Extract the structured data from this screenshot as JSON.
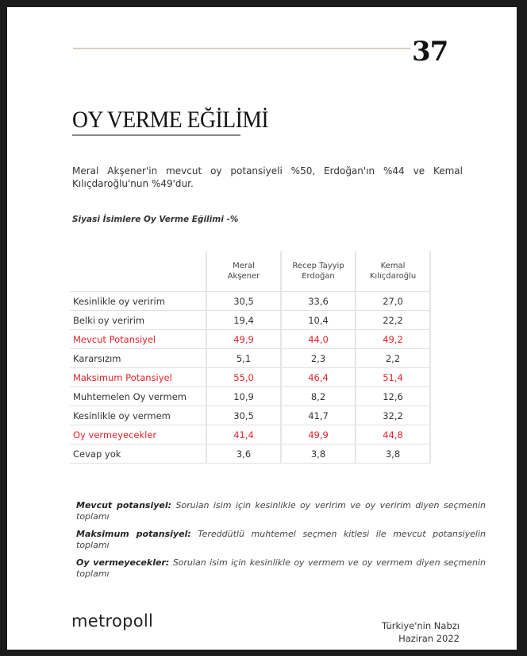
{
  "header": {
    "page_number": "37"
  },
  "title": "OY VERME EĞİLİMİ",
  "intro": "Meral Akşener'in mevcut oy potansiyeli %50, Erdoğan'ın %44 ve Kemal Kılıçdaroğlu'nun %49'dur.",
  "table_caption": "Siyasi İsimlere Oy Verme Eğilimi -%",
  "table": {
    "columns": [
      {
        "line1": "Meral",
        "line2": "Akşener"
      },
      {
        "line1": "Recep Tayyip",
        "line2": "Erdoğan"
      },
      {
        "line1": "Kemal",
        "line2": "Kılıçdaroğlu"
      }
    ],
    "rows": [
      {
        "label": "Kesinlikle oy veririm",
        "values": [
          "30,5",
          "33,6",
          "27,0"
        ],
        "highlight": false
      },
      {
        "label": "Belki oy veririm",
        "values": [
          "19,4",
          "10,4",
          "22,2"
        ],
        "highlight": false
      },
      {
        "label": "Mevcut Potansiyel",
        "values": [
          "49,9",
          "44,0",
          "49,2"
        ],
        "highlight": true
      },
      {
        "label": "Kararsızım",
        "values": [
          "5,1",
          "2,3",
          "2,2"
        ],
        "highlight": false
      },
      {
        "label": "Maksimum Potansiyel",
        "values": [
          "55,0",
          "46,4",
          "51,4"
        ],
        "highlight": true
      },
      {
        "label": "Muhtemelen Oy vermem",
        "values": [
          "10,9",
          "8,2",
          "12,6"
        ],
        "highlight": false
      },
      {
        "label": "Kesinlikle oy vermem",
        "values": [
          "30,5",
          "41,7",
          "32,2"
        ],
        "highlight": false
      },
      {
        "label": "Oy vermeyecekler",
        "values": [
          "41,4",
          "49,9",
          "44,8"
        ],
        "highlight": true
      },
      {
        "label": "Cevap yok",
        "values": [
          "3,6",
          "3,8",
          "3,8"
        ],
        "highlight": false
      }
    ],
    "highlight_color": "#e3242b"
  },
  "notes": [
    {
      "term": "Mevcut potansiyel:",
      "text": " Sorulan isim için kesinlikle oy veririm ve oy veririm diyen seçmenin toplamı"
    },
    {
      "term": "Maksimum potansiyel:",
      "text": " Tereddütlü muhtemel seçmen kitlesi ile mevcut potansiyelin toplamı"
    },
    {
      "term": "Oy vermeyecekler:",
      "text": " Sorulan isim için kesinlikle oy vermem ve oy vermem diyen seçmenin toplamı"
    }
  ],
  "footer": {
    "logo": "metropoll",
    "line1": "Türkiye'nin Nabzı",
    "line2": "Haziran 2022"
  }
}
